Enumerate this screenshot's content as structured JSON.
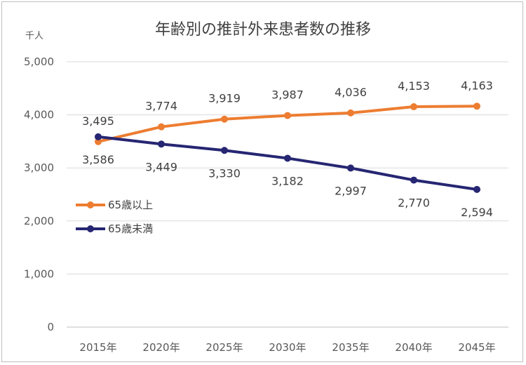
{
  "chart_data": {
    "type": "line",
    "title": "年齢別の推計外来患者数の推移",
    "ylabel": "千人",
    "xlabel": "",
    "categories": [
      "2015年",
      "2020年",
      "2025年",
      "2030年",
      "2035年",
      "2040年",
      "2045年"
    ],
    "ylim": [
      0,
      5000
    ],
    "yticks": [
      "0",
      "1,000",
      "2,000",
      "3,000",
      "4,000",
      "5,000"
    ],
    "grid": true,
    "legend_placement": "left",
    "series": [
      {
        "name": "65歳以上",
        "color": "#ed7d31",
        "values": [
          3495,
          3774,
          3919,
          3987,
          4036,
          4153,
          4163
        ],
        "labels": [
          "3,495",
          "3,774",
          "3,919",
          "3,987",
          "4,036",
          "4,153",
          "4,163"
        ]
      },
      {
        "name": "65歳未満",
        "color": "#262673",
        "values": [
          3586,
          3449,
          3330,
          3182,
          2997,
          2770,
          2594
        ],
        "labels": [
          "3,586",
          "3,449",
          "3,330",
          "3,182",
          "2,997",
          "2,770",
          "2,594"
        ]
      }
    ]
  }
}
